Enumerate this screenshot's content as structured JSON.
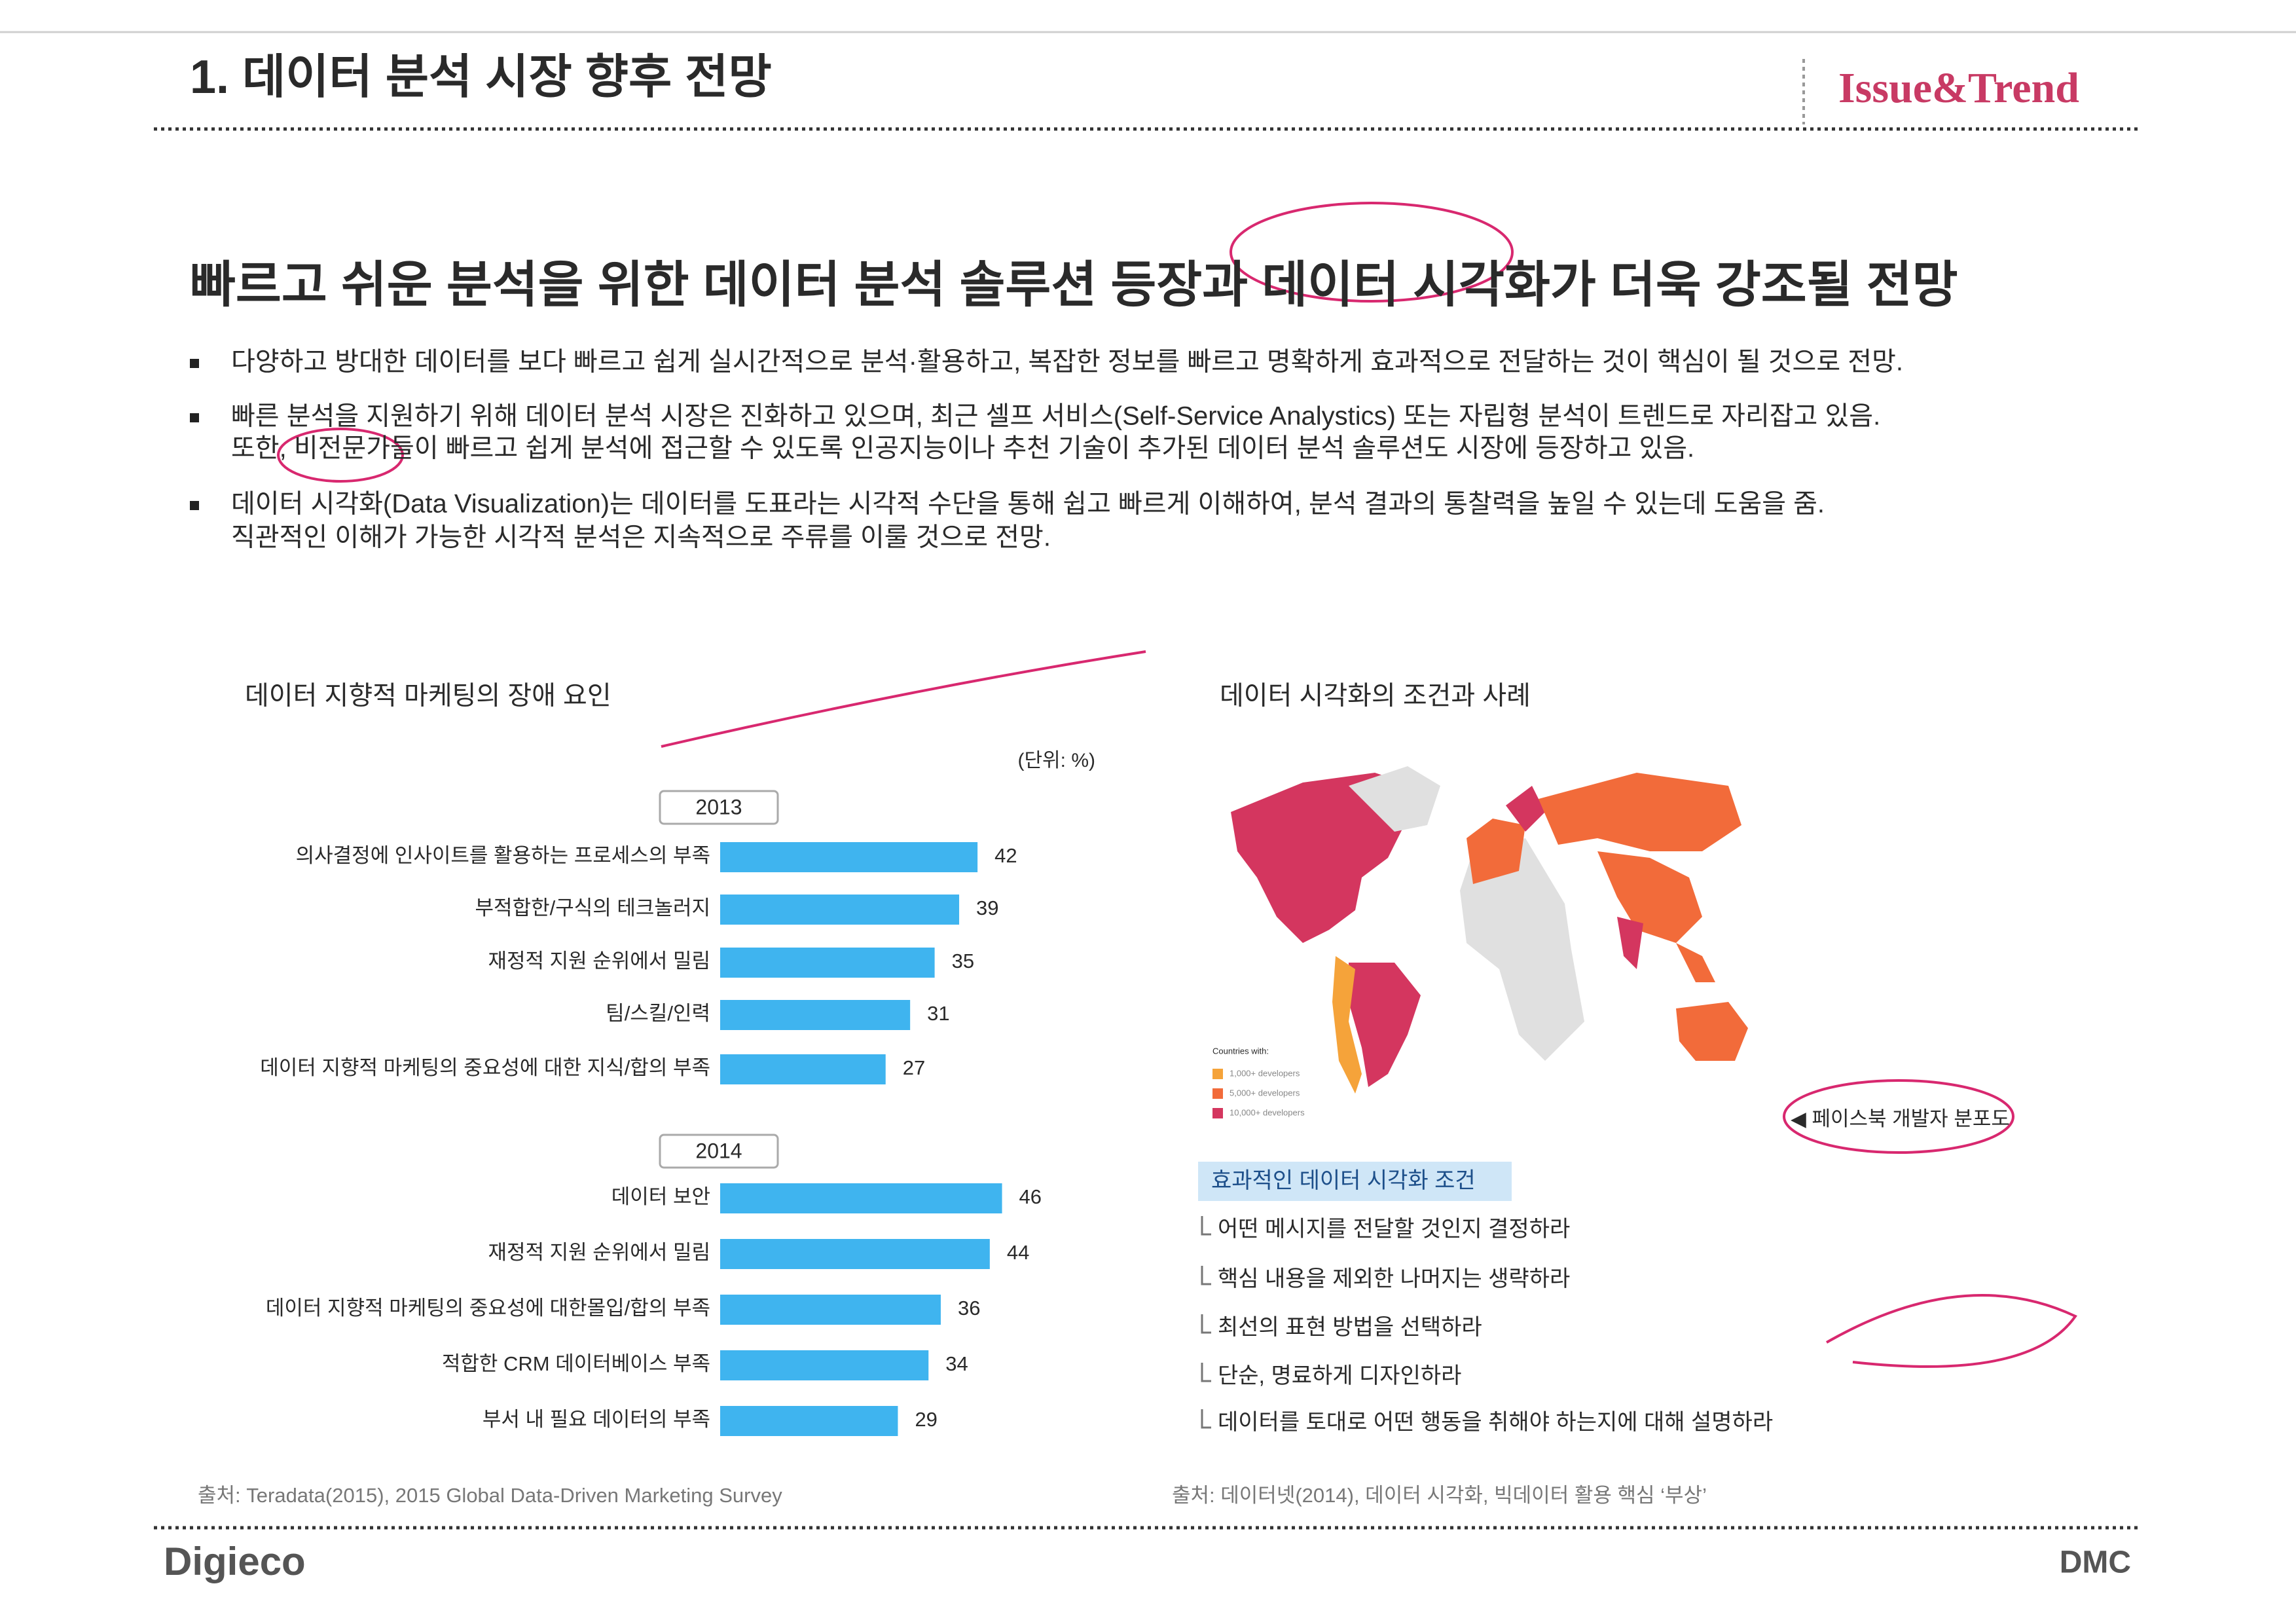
{
  "header": {
    "title": "1. 데이터 분석 시장 향후 전망",
    "brand": "Issue&Trend"
  },
  "headline": "빠르고 쉬운 분석을 위한 데이터 분석 솔루션 등장과 데이터 시각화가 더욱 강조될 전망",
  "bullets": [
    [
      "다양하고 방대한 데이터를 보다 빠르고 쉽게 실시간적으로 분석·활용하고, 복잡한 정보를 빠르고 명확하게 효과적으로 전달하는 것이 핵심이 될 것으로 전망."
    ],
    [
      "빠른 분석을 지원하기 위해 데이터 분석 시장은 진화하고 있으며, 최근 셀프 서비스(Self-Service Analystics) 또는 자립형 분석이 트렌드로 자리잡고 있음.",
      "또한, 비전문가들이 빠르고 쉽게 분석에 접근할 수 있도록 인공지능이나 추천 기술이 추가된 데이터 분석 솔루션도 시장에 등장하고 있음."
    ],
    [
      "데이터 시각화(Data Visualization)는 데이터를 도표라는 시각적 수단을 통해 쉽고 빠르게 이해하여, 분석 결과의 통찰력을 높일 수 있는데 도움을 줌.",
      "직관적인 이해가 가능한 시각적 분석은 지속적으로 주류를 이룰 것으로 전망."
    ]
  ],
  "left_section": {
    "title": "데이터 지향적 마케팅의 장애 요인",
    "unit": "(단위: %)",
    "source": "출처: Teradata(2015), 2015 Global Data-Driven Marketing Survey"
  },
  "chart_data": [
    {
      "type": "bar",
      "title": "2013",
      "categories": [
        "의사결정에 인사이트를 활용하는 프로세스의 부족",
        "부적합한/구식의 테크놀러지",
        "재정적 지원 순위에서 밀림",
        "팀/스킬/인력",
        "데이터 지향적 마케팅의 중요성에 대한 지식/합의 부족"
      ],
      "values": [
        42,
        39,
        35,
        31,
        27
      ],
      "color": "#3fb4ef",
      "xlim": [
        0,
        50
      ]
    },
    {
      "type": "bar",
      "title": "2014",
      "categories": [
        "데이터 보안",
        "재정적 지원 순위에서 밀림",
        "데이터 지향적 마케팅의 중요성에 대한몰입/합의 부족",
        "적합한 CRM 데이터베이스 부족",
        "부서 내 필요 데이터의 부족"
      ],
      "values": [
        46,
        44,
        36,
        34,
        29
      ],
      "color": "#3fb4ef",
      "xlim": [
        0,
        50
      ]
    }
  ],
  "right_section": {
    "title": "데이터 시각화의 조건과 사례",
    "map_legend": {
      "title": "Countries with:",
      "items": [
        {
          "label": "1,000+ developers",
          "color": "#f5a33a"
        },
        {
          "label": "5,000+ developers",
          "color": "#f26b3a"
        },
        {
          "label": "10,000+ developers",
          "color": "#d4365f"
        }
      ]
    },
    "map_caption": "◀ 페이스북 개발자 분포도",
    "box_title": "효과적인 데이터 시각화 조건",
    "items": [
      "어떤 메시지를 전달할 것인지 결정하라",
      "핵심 내용을 제외한 나머지는 생략하라",
      "최선의 표현 방법을 선택하라",
      "단순, 명료하게 디자인하라",
      "데이터를 토대로 어떤 행동을 취해야 하는지에 대해 설명하라"
    ],
    "source": "출처: 데이터넷(2014), 데이터 시각화, 빅데이터 활용 핵심 ‘부상’"
  },
  "footer": {
    "left": "Digieco",
    "right": "DMC"
  }
}
